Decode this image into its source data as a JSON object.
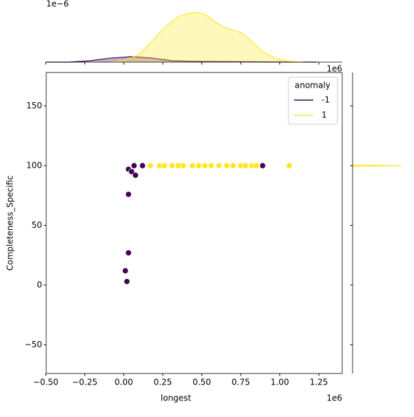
{
  "chart_data": [
    {
      "type": "scatter",
      "xlabel": "longest",
      "ylabel": "Completeness_Specific",
      "x_offset": "1e6",
      "xlim": [
        -0.497,
        1.4
      ],
      "ylim": [
        -74,
        178
      ],
      "xticks": [
        {
          "value": -0.5,
          "label": "−0.50"
        },
        {
          "value": -0.25,
          "label": "−0.25"
        },
        {
          "value": 0,
          "label": "0.00"
        },
        {
          "value": 0.25,
          "label": "0.25"
        },
        {
          "value": 0.5,
          "label": "0.50"
        },
        {
          "value": 0.75,
          "label": "0.75"
        },
        {
          "value": 1,
          "label": "1.00"
        },
        {
          "value": 1.25,
          "label": "1.25"
        }
      ],
      "yticks": [
        {
          "value": -50,
          "label": "−50"
        },
        0,
        50,
        100,
        150
      ],
      "legend": {
        "title": "anomaly",
        "loc": "upper right"
      },
      "series": [
        {
          "name": "-1",
          "color": "#440154",
          "x": [
            0.89,
            0.12,
            0.066,
            0.03,
            0.05,
            0.075,
            0.03,
            0.03,
            0.01,
            0.02
          ],
          "values": [
            100,
            100,
            100,
            97,
            95,
            92,
            76,
            27,
            12,
            3
          ]
        },
        {
          "name": "1",
          "color": "#fde725",
          "x": [
            0.17,
            0.23,
            0.26,
            0.31,
            0.35,
            0.38,
            0.44,
            0.48,
            0.52,
            0.56,
            0.61,
            0.66,
            0.7,
            0.75,
            0.78,
            0.82,
            0.85,
            1.06
          ],
          "values": [
            100,
            100,
            100,
            100,
            100,
            100,
            100,
            100,
            100,
            100,
            100,
            100,
            100,
            100,
            100,
            100,
            100,
            100
          ]
        }
      ]
    },
    {
      "type": "kde",
      "orient": "vertical",
      "y_offset": "1e−6",
      "xlim": [
        -0.497,
        1.4
      ],
      "ylim": [
        0,
        1.9
      ],
      "series": [
        {
          "color": "#440154",
          "x": [
            -0.5,
            -0.35,
            -0.22,
            -0.08,
            0.05,
            0.18,
            0.31,
            0.45,
            0.89,
            1.24
          ],
          "values": [
            0,
            0,
            0.05,
            0.15,
            0.2,
            0.15,
            0.05,
            0.03,
            0.01,
            0
          ]
        },
        {
          "color": "#fde725",
          "x": [
            -0.08,
            0,
            0.09,
            0.18,
            0.27,
            0.35,
            0.42,
            0.48,
            0.53,
            0.6,
            0.67,
            0.71,
            0.76,
            0.82,
            0.89,
            0.98,
            1.06,
            1.15
          ],
          "values": [
            0,
            0.05,
            0.25,
            0.76,
            1.32,
            1.67,
            1.8,
            1.82,
            1.72,
            1.42,
            1.22,
            1.16,
            1.06,
            0.76,
            0.38,
            0.13,
            0.03,
            0
          ]
        }
      ]
    },
    {
      "type": "kde",
      "orient": "horizontal",
      "x_offset": "1e6",
      "xlim": [
        0,
        1
      ],
      "ylim": [
        -74,
        178
      ],
      "series": [
        {
          "color": "#fde725",
          "y": [
            99.5,
            100,
            100.5
          ],
          "values": [
            0,
            0.8,
            0
          ]
        }
      ]
    }
  ]
}
